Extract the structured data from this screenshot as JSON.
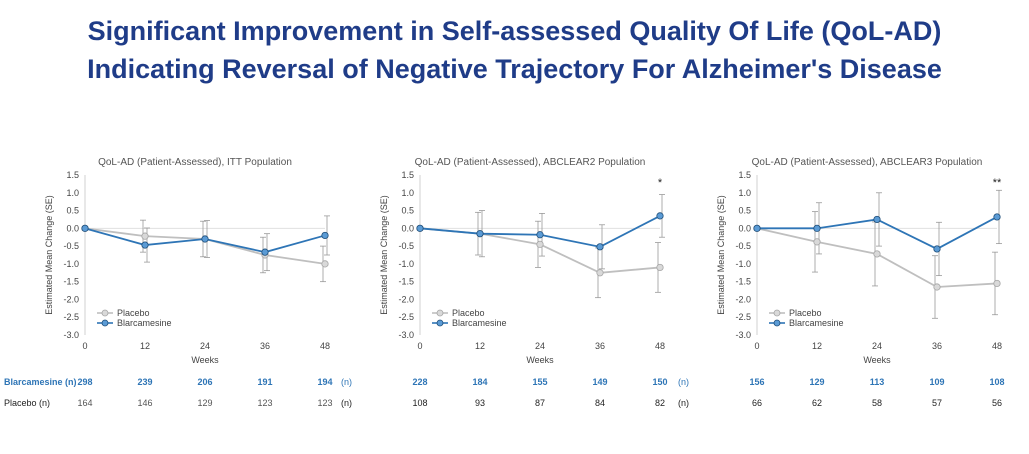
{
  "title": {
    "line1": "Significant Improvement in Self-assessed Quality Of Life (QoL-AD)",
    "line2": "Indicating Reversal of Negative Trajectory For Alzheimer's Disease"
  },
  "colors": {
    "title": "#1f3c88",
    "placebo": "#bfbfbf",
    "blarcamesine": "#2e75b6",
    "blarcamesine_n": "#2e75b6"
  },
  "chart_data": [
    {
      "type": "line",
      "title": "QoL-AD (Patient-Assessed), ITT Population",
      "xlabel": "Weeks",
      "ylabel": "Estimated Mean Change (SE)",
      "x": [
        0,
        12,
        24,
        36,
        48
      ],
      "ylim": [
        -3.0,
        1.5
      ],
      "yticks": [
        "1.5",
        "1.0",
        "0.5",
        "0.0",
        "-0.5",
        "-1.0",
        "-1.5",
        "-2.0",
        "-2.5",
        "-3.0"
      ],
      "xticks": [
        "0",
        "12",
        "24",
        "36",
        "48"
      ],
      "significance": [
        "",
        "",
        "",
        "",
        ""
      ],
      "legend": [
        "Placebo",
        "Blarcamesine"
      ],
      "series": [
        {
          "name": "Placebo",
          "values": [
            0.0,
            -0.22,
            -0.3,
            -0.75,
            -1.0
          ],
          "se": [
            0,
            0.45,
            0.5,
            0.5,
            0.5
          ]
        },
        {
          "name": "Blarcamesine",
          "values": [
            0.0,
            -0.47,
            -0.3,
            -0.67,
            -0.2
          ],
          "se": [
            0,
            0.48,
            0.52,
            0.52,
            0.55
          ]
        }
      ],
      "n": {
        "blarcamesine_label": "Blarcamesine (n)",
        "blarcamesine": [
          "298",
          "239",
          "206",
          "191",
          "194"
        ],
        "placebo_label": "Placebo (n)",
        "placebo": [
          "164",
          "146",
          "129",
          "123",
          "123"
        ]
      }
    },
    {
      "type": "line",
      "title": "QoL-AD (Patient-Assessed), ABCLEAR2 Population",
      "xlabel": "Weeks",
      "ylabel": "Estimated Mean Change (SE)",
      "x": [
        0,
        12,
        24,
        36,
        48
      ],
      "ylim": [
        -3.0,
        1.5
      ],
      "yticks": [
        "1.5",
        "1.0",
        "0.5",
        "0.0",
        "-0.5",
        "-1.0",
        "-1.5",
        "-2.0",
        "-2.5",
        "-3.0"
      ],
      "xticks": [
        "0",
        "12",
        "24",
        "36",
        "48"
      ],
      "significance": [
        "",
        "",
        "",
        "",
        "*"
      ],
      "legend": [
        "Placebo",
        "Blarcamesine"
      ],
      "series": [
        {
          "name": "Placebo",
          "values": [
            0.0,
            -0.15,
            -0.45,
            -1.25,
            -1.1
          ],
          "se": [
            0,
            0.6,
            0.65,
            0.7,
            0.7
          ]
        },
        {
          "name": "Blarcamesine",
          "values": [
            0.0,
            -0.15,
            -0.18,
            -0.52,
            0.35
          ],
          "se": [
            0,
            0.65,
            0.6,
            0.62,
            0.6
          ]
        }
      ],
      "n": {
        "blarcamesine_label": "(n)",
        "blarcamesine": [
          "228",
          "184",
          "155",
          "149",
          "150"
        ],
        "placebo_label": "(n)",
        "placebo": [
          "108",
          "93",
          "87",
          "84",
          "82"
        ]
      }
    },
    {
      "type": "line",
      "title": "QoL-AD (Patient-Assessed), ABCLEAR3 Population",
      "xlabel": "Weeks",
      "ylabel": "Estimated Mean Change (SE)",
      "x": [
        0,
        12,
        24,
        36,
        48
      ],
      "ylim": [
        -3.0,
        1.5
      ],
      "yticks": [
        "1.5",
        "1.0",
        "0.5",
        "0.0",
        "-0.5",
        "-1.0",
        "-1.5",
        "-2.0",
        "-2.5",
        "-3.0"
      ],
      "xticks": [
        "0",
        "12",
        "24",
        "36",
        "48"
      ],
      "significance": [
        "",
        "",
        "",
        "",
        "**"
      ],
      "legend": [
        "Placebo",
        "Blarcamesine"
      ],
      "series": [
        {
          "name": "Placebo",
          "values": [
            0.0,
            -0.38,
            -0.72,
            -1.65,
            -1.55
          ],
          "se": [
            0,
            0.85,
            0.9,
            0.88,
            0.88
          ]
        },
        {
          "name": "Blarcamesine",
          "values": [
            0.0,
            0.0,
            0.25,
            -0.58,
            0.32
          ],
          "se": [
            0,
            0.72,
            0.75,
            0.75,
            0.75
          ]
        }
      ],
      "n": {
        "blarcamesine_label": "(n)",
        "blarcamesine": [
          "156",
          "129",
          "113",
          "109",
          "108"
        ],
        "placebo_label": "(n)",
        "placebo": [
          "66",
          "62",
          "58",
          "57",
          "56"
        ]
      }
    }
  ]
}
